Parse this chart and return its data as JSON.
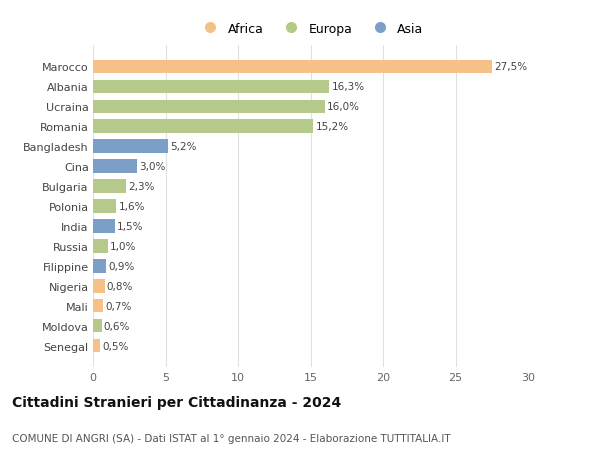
{
  "categories": [
    "Marocco",
    "Albania",
    "Ucraina",
    "Romania",
    "Bangladesh",
    "Cina",
    "Bulgaria",
    "Polonia",
    "India",
    "Russia",
    "Filippine",
    "Nigeria",
    "Mali",
    "Moldova",
    "Senegal"
  ],
  "values": [
    27.5,
    16.3,
    16.0,
    15.2,
    5.2,
    3.0,
    2.3,
    1.6,
    1.5,
    1.0,
    0.9,
    0.8,
    0.7,
    0.6,
    0.5
  ],
  "labels": [
    "27,5%",
    "16,3%",
    "16,0%",
    "15,2%",
    "5,2%",
    "3,0%",
    "2,3%",
    "1,6%",
    "1,5%",
    "1,0%",
    "0,9%",
    "0,8%",
    "0,7%",
    "0,6%",
    "0,5%"
  ],
  "colors": [
    "#f5c189",
    "#b5c98a",
    "#b5c98a",
    "#b5c98a",
    "#7b9fc7",
    "#7b9fc7",
    "#b5c98a",
    "#b5c98a",
    "#7b9fc7",
    "#b5c98a",
    "#7b9fc7",
    "#f5c189",
    "#f5c189",
    "#b5c98a",
    "#f5c189"
  ],
  "legend_colors": {
    "Africa": "#f5c189",
    "Europa": "#b5c98a",
    "Asia": "#7b9fc7"
  },
  "title": "Cittadini Stranieri per Cittadinanza - 2024",
  "subtitle": "COMUNE DI ANGRI (SA) - Dati ISTAT al 1° gennaio 2024 - Elaborazione TUTTITALIA.IT",
  "xlim": [
    0,
    30
  ],
  "xticks": [
    0,
    5,
    10,
    15,
    20,
    25,
    30
  ],
  "background_color": "#ffffff",
  "grid_color": "#e0e0e0",
  "bar_height": 0.68,
  "label_fontsize": 7.5,
  "tick_fontsize": 8,
  "title_fontsize": 10,
  "subtitle_fontsize": 7.5
}
